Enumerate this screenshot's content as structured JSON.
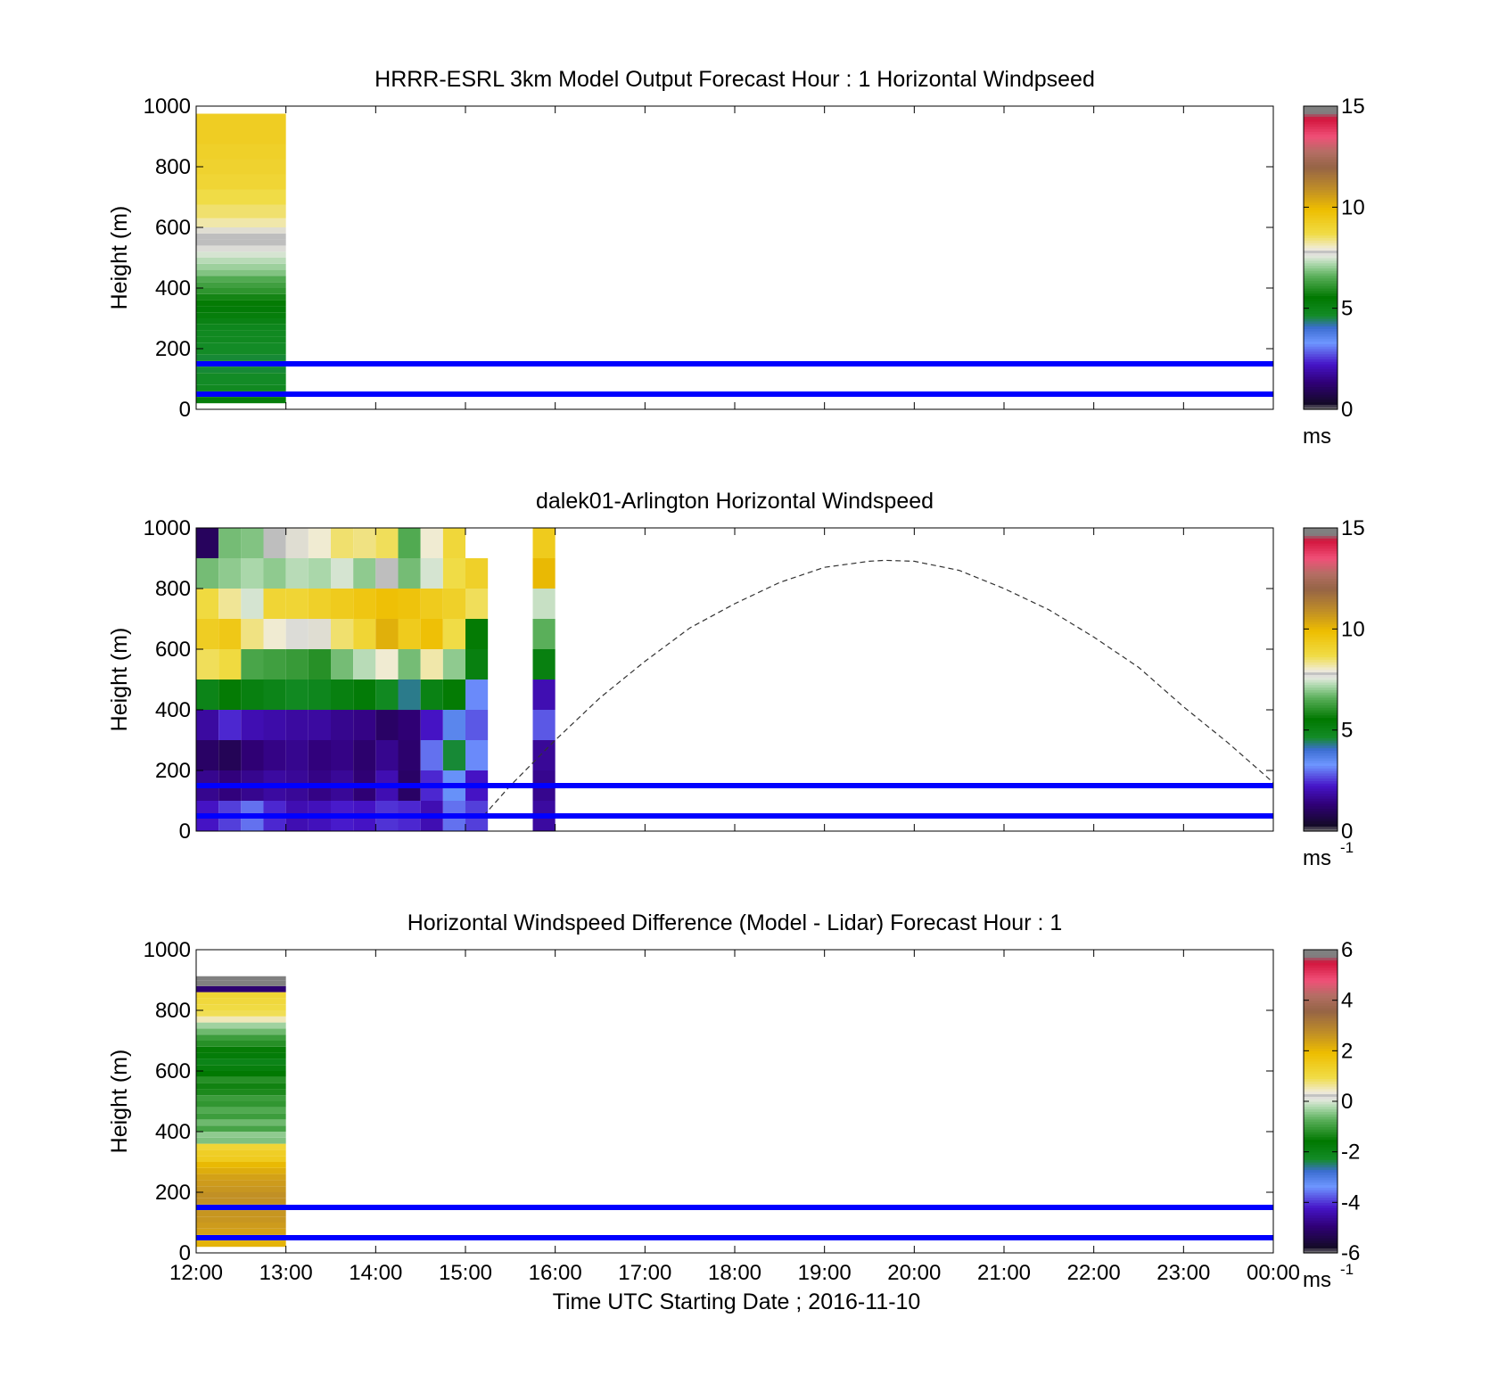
{
  "xticks": [
    "12:00",
    "13:00",
    "14:00",
    "15:00",
    "16:00",
    "17:00",
    "18:00",
    "19:00",
    "20:00",
    "21:00",
    "22:00",
    "23:00",
    "00:00"
  ],
  "xlabel": "Time UTC  Starting Date ; 2016-11-10",
  "chart_data": [
    {
      "type": "heatmap",
      "title": "HRRR-ESRL 3km Model Output   Forecast Hour : 1 Horizontal Windpseed",
      "ylabel": "Height (m)",
      "ylim": [
        0,
        1000
      ],
      "yticks": [
        "0",
        "200",
        "400",
        "600",
        "800",
        "1000"
      ],
      "xlim": [
        "12:00",
        "00:00"
      ],
      "colorbar": {
        "range": [
          0,
          15
        ],
        "ticks": [
          "0",
          "5",
          "10",
          "15"
        ],
        "unit": "ms",
        "unit_sup": ""
      },
      "reference_lines_m": [
        50,
        150
      ],
      "reference_line_color": "#0000ff",
      "columns": [
        {
          "start_hour": 12,
          "end_hour": 13,
          "heights_m": [
            30,
            50,
            70,
            90,
            110,
            130,
            150,
            170,
            190,
            210,
            230,
            250,
            270,
            290,
            310,
            330,
            350,
            370,
            390,
            410,
            430,
            450,
            470,
            490,
            510,
            530,
            550,
            570,
            590,
            610,
            650,
            700,
            750,
            800,
            850,
            900,
            950
          ],
          "values": [
            5.3,
            5.0,
            4.8,
            4.7,
            4.7,
            4.6,
            4.6,
            4.6,
            4.7,
            4.7,
            4.8,
            4.8,
            4.9,
            5.1,
            5.3,
            5.4,
            5.6,
            5.8,
            6.1,
            6.3,
            6.5,
            6.9,
            7.1,
            7.3,
            7.5,
            7.7,
            7.8,
            7.8,
            7.9,
            8.2,
            8.5,
            8.7,
            9.0,
            9.1,
            9.2,
            9.3,
            9.3
          ]
        }
      ]
    },
    {
      "type": "heatmap",
      "title": "dalek01-Arlington  Horizontal Windspeed",
      "ylabel": "Height (m)",
      "ylim": [
        0,
        1000
      ],
      "yticks": [
        "0",
        "200",
        "400",
        "600",
        "800",
        "1000"
      ],
      "xlim": [
        "12:00",
        "00:00"
      ],
      "colorbar": {
        "range": [
          0,
          15
        ],
        "ticks": [
          "0",
          "5",
          "10",
          "15"
        ],
        "unit": "ms",
        "unit_sup": "-1"
      },
      "reference_lines_m": [
        50,
        150
      ],
      "reference_line_color": "#0000ff",
      "curve": {
        "style": "dashed",
        "color": "#333333",
        "x_hours": [
          15.2,
          15.5,
          16.0,
          16.5,
          17.0,
          17.5,
          18.0,
          18.5,
          19.0,
          19.5,
          19.67,
          20.0,
          20.5,
          21.0,
          21.5,
          22.0,
          22.5,
          23.0,
          23.5,
          24.0
        ],
        "y_m": [
          50,
          150,
          300,
          440,
          560,
          670,
          750,
          820,
          870,
          890,
          893,
          890,
          860,
          800,
          730,
          640,
          540,
          410,
          290,
          160
        ]
      },
      "columns": [
        {
          "start_hour": 12.0,
          "end_hour": 12.25,
          "heights_m": [
            50,
            150,
            250,
            350,
            450,
            550,
            650,
            750,
            850,
            950
          ],
          "values": [
            2.2,
            1.6,
            1.1,
            1.8,
            5.0,
            8.6,
            9.3,
            8.8,
            6.8,
            1.0
          ]
        },
        {
          "start_hour": 12.25,
          "end_hour": 12.5,
          "heights_m": [
            50,
            150,
            250,
            350,
            450,
            550,
            650,
            750,
            850,
            950
          ],
          "values": [
            2.6,
            1.4,
            0.9,
            2.4,
            5.6,
            8.8,
            9.5,
            8.3,
            7.0,
            6.8
          ]
        },
        {
          "start_hour": 12.5,
          "end_hour": 12.75,
          "heights_m": [
            50,
            150,
            250,
            350,
            450,
            550,
            650,
            750,
            850,
            950
          ],
          "values": [
            3.0,
            1.6,
            1.3,
            2.0,
            5.2,
            6.4,
            8.4,
            7.5,
            7.2,
            6.9
          ]
        },
        {
          "start_hour": 12.75,
          "end_hour": 13.0,
          "heights_m": [
            50,
            150,
            250,
            350,
            450,
            550,
            650,
            750,
            850,
            950
          ],
          "values": [
            2.4,
            1.8,
            1.5,
            1.9,
            5.0,
            6.3,
            8.0,
            9.0,
            7.0,
            7.8
          ]
        },
        {
          "start_hour": 13.0,
          "end_hour": 13.25,
          "heights_m": [
            50,
            150,
            250,
            350,
            450,
            550,
            650,
            750,
            850,
            950
          ],
          "values": [
            2.0,
            1.7,
            1.6,
            1.8,
            4.8,
            6.2,
            7.7,
            9.0,
            7.3,
            7.9
          ]
        },
        {
          "start_hour": 13.25,
          "end_hour": 13.5,
          "heights_m": [
            50,
            150,
            250,
            350,
            450,
            550,
            650,
            750,
            850,
            950
          ],
          "values": [
            2.1,
            1.5,
            1.4,
            1.8,
            4.9,
            6.0,
            7.9,
            9.2,
            7.2,
            8.0
          ]
        },
        {
          "start_hour": 13.5,
          "end_hour": 13.75,
          "heights_m": [
            50,
            150,
            250,
            350,
            450,
            550,
            650,
            750,
            850,
            950
          ],
          "values": [
            2.3,
            1.7,
            1.5,
            1.6,
            5.2,
            6.8,
            8.5,
            9.4,
            7.5,
            8.5
          ]
        },
        {
          "start_hour": 13.75,
          "end_hour": 14.0,
          "heights_m": [
            50,
            150,
            250,
            350,
            450,
            550,
            650,
            750,
            850,
            950
          ],
          "values": [
            2.2,
            1.3,
            1.2,
            1.5,
            5.4,
            7.3,
            9.0,
            9.6,
            7.0,
            8.4
          ]
        },
        {
          "start_hour": 14.0,
          "end_hour": 14.25,
          "heights_m": [
            50,
            150,
            250,
            350,
            450,
            550,
            650,
            750,
            850,
            950
          ],
          "values": [
            2.5,
            2.0,
            1.6,
            1.1,
            4.8,
            8.0,
            10.2,
            9.8,
            7.8,
            8.6
          ]
        },
        {
          "start_hour": 14.25,
          "end_hour": 14.5,
          "heights_m": [
            50,
            150,
            250,
            350,
            450,
            550,
            650,
            750,
            850,
            950
          ],
          "values": [
            2.4,
            1.1,
            1.2,
            1.3,
            4.3,
            6.8,
            9.4,
            9.7,
            6.8,
            6.5
          ]
        },
        {
          "start_hour": 14.5,
          "end_hour": 14.75,
          "heights_m": [
            50,
            150,
            250,
            350,
            450,
            550,
            650,
            750,
            850,
            950
          ],
          "values": [
            2.0,
            2.4,
            3.0,
            2.2,
            5.1,
            8.2,
            9.8,
            9.4,
            7.5,
            8.0
          ]
        },
        {
          "start_hour": 14.75,
          "end_hour": 15.0,
          "heights_m": [
            50,
            150,
            250,
            350,
            450,
            550,
            650,
            750,
            850,
            950
          ],
          "values": [
            3.0,
            3.4,
            4.6,
            3.6,
            5.6,
            7.0,
            8.7,
            9.2,
            8.7,
            8.9
          ]
        },
        {
          "start_hour": 15.0,
          "end_hour": 15.25,
          "heights_m": [
            50,
            150,
            250,
            350,
            450,
            550,
            650,
            750,
            850
          ],
          "values": [
            2.6,
            2.2,
            3.2,
            2.8,
            3.2,
            5.2,
            5.6,
            8.6,
            9.2
          ]
        },
        {
          "start_hour": 15.75,
          "end_hour": 16.0,
          "heights_m": [
            50,
            150,
            250,
            350,
            450,
            550,
            650,
            750,
            850,
            950
          ],
          "values": [
            1.8,
            1.6,
            1.7,
            2.8,
            2.0,
            5.2,
            6.6,
            7.4,
            10.0,
            9.4
          ]
        }
      ]
    },
    {
      "type": "heatmap",
      "title": "Horizontal Windspeed Difference (Model - Lidar) Forecast Hour : 1",
      "ylabel": "Height (m)",
      "ylim": [
        0,
        1000
      ],
      "yticks": [
        "0",
        "200",
        "400",
        "600",
        "800",
        "1000"
      ],
      "xlim": [
        "12:00",
        "00:00"
      ],
      "colorbar": {
        "range": [
          -6,
          6
        ],
        "ticks": [
          "-6",
          "-4",
          "-2",
          "0",
          "2",
          "4",
          "6"
        ],
        "unit": "ms",
        "unit_sup": "-1"
      },
      "reference_lines_m": [
        50,
        150
      ],
      "reference_line_color": "#0000ff",
      "columns": [
        {
          "start_hour": 12,
          "end_hour": 13,
          "heights_m": [
            30,
            50,
            70,
            90,
            110,
            130,
            150,
            170,
            190,
            210,
            230,
            250,
            270,
            290,
            310,
            330,
            350,
            370,
            390,
            410,
            430,
            450,
            470,
            490,
            510,
            530,
            550,
            570,
            590,
            610,
            630,
            650,
            670,
            690,
            710,
            730,
            750,
            770,
            790,
            810,
            830,
            850,
            870,
            890,
            905
          ],
          "values": [
            2.1,
            2.2,
            2.4,
            2.5,
            2.6,
            2.6,
            2.7,
            2.7,
            2.7,
            2.6,
            2.5,
            2.4,
            2.2,
            2.0,
            1.5,
            1.4,
            1.2,
            -0.5,
            -0.4,
            -0.9,
            -0.6,
            -1.0,
            -0.8,
            -1.1,
            -1.0,
            -1.3,
            -1.4,
            -1.2,
            -1.6,
            -1.8,
            -2.0,
            -1.7,
            -1.5,
            -1.2,
            -1.0,
            -0.6,
            -0.3,
            0.5,
            0.9,
            1.0,
            1.1,
            1.2,
            -5.0,
            -6.0,
            -6.0
          ]
        }
      ]
    }
  ]
}
